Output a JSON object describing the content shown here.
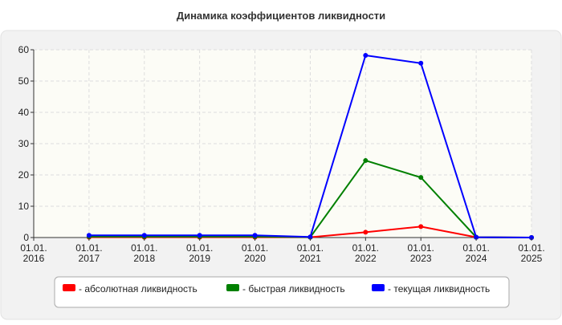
{
  "chart_data": {
    "type": "line",
    "title": "Динамика коэффициентов ликвидности",
    "categories": [
      "01.01.\n2016",
      "01.01.\n2017",
      "01.01.\n2018",
      "01.01.\n2019",
      "01.01.\n2020",
      "01.01.\n2021",
      "01.01.\n2022",
      "01.01.\n2023",
      "01.01.\n2024",
      "01.01.\n2025"
    ],
    "series": [
      {
        "name": "- абсолютная ликвидность",
        "color": "#ff0000",
        "values": [
          null,
          0.1,
          0.1,
          0.1,
          0.1,
          0.1,
          1.7,
          3.5,
          0.1,
          0
        ]
      },
      {
        "name": "- быстрая ликвидность",
        "color": "#008000",
        "values": [
          null,
          0.3,
          0.3,
          0.3,
          0.3,
          0.1,
          24.6,
          19.2,
          0.1,
          0
        ]
      },
      {
        "name": "- текущая ликвидность",
        "color": "#0000ff",
        "values": [
          null,
          0.7,
          0.7,
          0.7,
          0.7,
          0.2,
          58.2,
          55.7,
          0.1,
          0
        ]
      }
    ],
    "ylim": [
      0,
      60
    ],
    "yticks": [
      0,
      10,
      20,
      30,
      40,
      50,
      60
    ],
    "grid": true,
    "legend": "bottom"
  }
}
